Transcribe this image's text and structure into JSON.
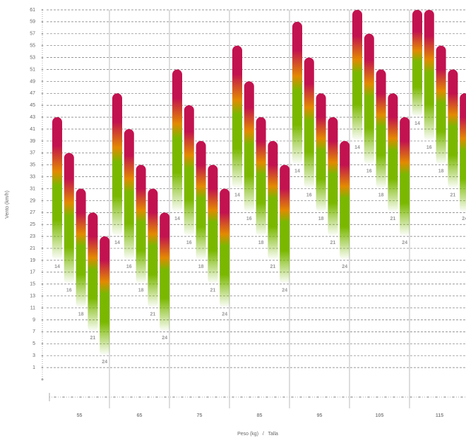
{
  "chart_data": {
    "type": "range-bar",
    "y_label": "Vento (km/h)",
    "x_label": "Peso (kg)   /   Talla",
    "ylim": [
      -1,
      61
    ],
    "yticks": [
      1,
      3,
      5,
      7,
      9,
      11,
      13,
      15,
      17,
      19,
      21,
      23,
      25,
      27,
      29,
      31,
      33,
      35,
      37,
      39,
      41,
      43,
      45,
      47,
      49,
      51,
      53,
      55,
      57,
      59,
      61
    ],
    "grid": true,
    "gradient": [
      "#c2124f",
      "#e38a00",
      "#7ab800"
    ],
    "groups": [
      {
        "label": "55",
        "bars": [
          {
            "label": "14",
            "low": 19,
            "high": 43
          },
          {
            "label": "16",
            "low": 15,
            "high": 37
          },
          {
            "label": "18",
            "low": 11,
            "high": 31
          },
          {
            "label": "21",
            "low": 7,
            "high": 27
          },
          {
            "label": "24",
            "low": 3,
            "high": 23
          }
        ]
      },
      {
        "label": "65",
        "bars": [
          {
            "label": "14",
            "low": 23,
            "high": 47
          },
          {
            "label": "16",
            "low": 19,
            "high": 41
          },
          {
            "label": "18",
            "low": 15,
            "high": 35
          },
          {
            "label": "21",
            "low": 11,
            "high": 31
          },
          {
            "label": "24",
            "low": 7,
            "high": 27
          }
        ]
      },
      {
        "label": "75",
        "bars": [
          {
            "label": "14",
            "low": 27,
            "high": 51
          },
          {
            "label": "16",
            "low": 23,
            "high": 45
          },
          {
            "label": "18",
            "low": 19,
            "high": 39
          },
          {
            "label": "21",
            "low": 15,
            "high": 35
          },
          {
            "label": "24",
            "low": 11,
            "high": 31
          }
        ]
      },
      {
        "label": "85",
        "bars": [
          {
            "label": "14",
            "low": 31,
            "high": 55
          },
          {
            "label": "16",
            "low": 27,
            "high": 49
          },
          {
            "label": "18",
            "low": 23,
            "high": 43
          },
          {
            "label": "21",
            "low": 19,
            "high": 39
          },
          {
            "label": "24",
            "low": 15,
            "high": 35
          }
        ]
      },
      {
        "label": "95",
        "bars": [
          {
            "label": "14",
            "low": 35,
            "high": 59
          },
          {
            "label": "16",
            "low": 31,
            "high": 53
          },
          {
            "label": "18",
            "low": 27,
            "high": 47
          },
          {
            "label": "21",
            "low": 23,
            "high": 43
          },
          {
            "label": "24",
            "low": 19,
            "high": 39
          }
        ]
      },
      {
        "label": "105",
        "bars": [
          {
            "label": "14",
            "low": 39,
            "high": 61
          },
          {
            "label": "16",
            "low": 35,
            "high": 57
          },
          {
            "label": "18",
            "low": 31,
            "high": 51
          },
          {
            "label": "21",
            "low": 27,
            "high": 47
          },
          {
            "label": "24",
            "low": 23,
            "high": 43
          }
        ]
      },
      {
        "label": "115",
        "bars": [
          {
            "label": "14",
            "low": 43,
            "high": 61
          },
          {
            "label": "16",
            "low": 39,
            "high": 61
          },
          {
            "label": "18",
            "low": 35,
            "high": 55
          },
          {
            "label": "21",
            "low": 31,
            "high": 51
          },
          {
            "label": "24",
            "low": 27,
            "high": 47
          }
        ]
      }
    ]
  }
}
